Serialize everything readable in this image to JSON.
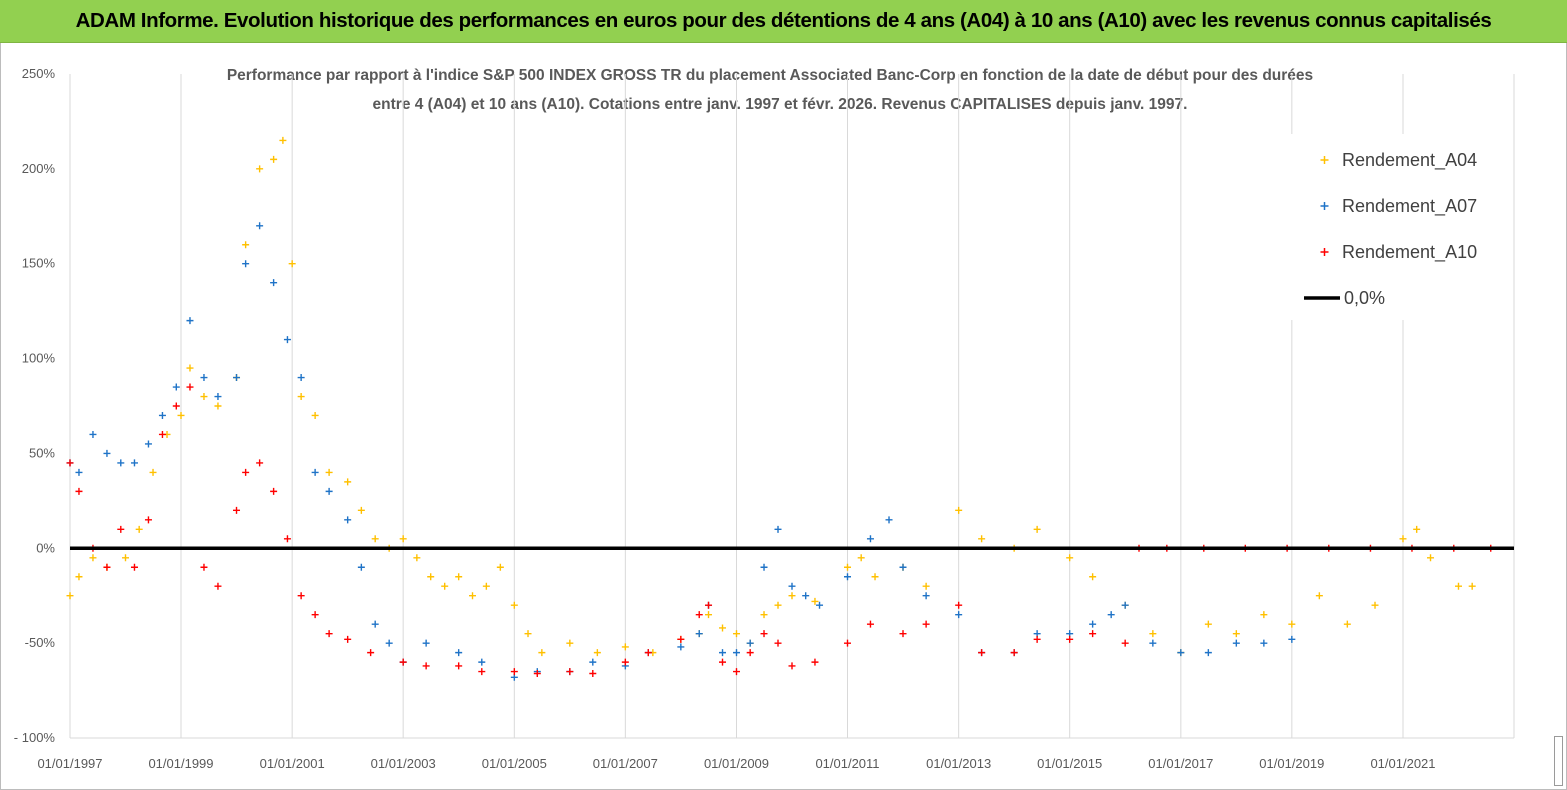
{
  "banner": {
    "title": "ADAM Informe. Evolution historique des performances en euros pour des détentions de 4 ans (A04) à 10 ans (A10) avec les revenus connus capitalisés"
  },
  "chart_data": {
    "type": "scatter",
    "subtitle_lines": [
      "Performance par rapport à l'indice S&P 500 INDEX GROSS TR  du placement Associated Banc-Corp en fonction de la date de début pour des durées",
      "entre 4 (A04) et 10 ans (A10).  Cotations entre janv. 1997 et févr. 2026. Revenus  CAPITALISES depuis janv. 1997."
    ],
    "ylim": [
      -100,
      250
    ],
    "yticks": [
      -100,
      -50,
      0,
      50,
      100,
      150,
      200,
      250
    ],
    "ytick_labels": [
      "- 100%",
      "-50%",
      "0%",
      "50%",
      "100%",
      "150%",
      "200%",
      "250%"
    ],
    "xlim": [
      "1997-01-01",
      "2023-01-01"
    ],
    "xticks": [
      "1997-01-01",
      "1999-01-01",
      "2001-01-01",
      "2003-01-01",
      "2005-01-01",
      "2007-01-01",
      "2009-01-01",
      "2011-01-01",
      "2013-01-01",
      "2015-01-01",
      "2017-01-01",
      "2019-01-01",
      "2021-01-01"
    ],
    "xtick_labels": [
      "01/01/1997",
      "01/01/1999",
      "01/01/2001",
      "01/01/2003",
      "01/01/2005",
      "01/01/2007",
      "01/01/2009",
      "01/01/2011",
      "01/01/2013",
      "01/01/2015",
      "01/01/2017",
      "01/01/2019",
      "01/01/2021"
    ],
    "grid": "vertical",
    "legend_position": "top-right",
    "series": [
      {
        "name": "Rendement_A04",
        "color": "#ffc000",
        "x": [
          "1997-01-01",
          "1997-03-01",
          "1997-06-01",
          "1997-09-01",
          "1998-01-01",
          "1998-04-01",
          "1998-07-01",
          "1998-10-01",
          "1999-01-01",
          "1999-03-01",
          "1999-06-01",
          "1999-09-01",
          "2000-01-01",
          "2000-03-01",
          "2000-06-01",
          "2000-09-01",
          "2000-11-01",
          "2001-01-01",
          "2001-03-01",
          "2001-06-01",
          "2001-09-01",
          "2002-01-01",
          "2002-04-01",
          "2002-07-01",
          "2002-10-01",
          "2003-01-01",
          "2003-04-01",
          "2003-07-01",
          "2003-10-01",
          "2004-01-01",
          "2004-04-01",
          "2004-07-01",
          "2004-10-01",
          "2005-01-01",
          "2005-04-01",
          "2005-07-01",
          "2006-01-01",
          "2006-07-01",
          "2007-01-01",
          "2007-07-01",
          "2008-01-01",
          "2008-05-01",
          "2008-07-01",
          "2008-10-01",
          "2009-01-01",
          "2009-04-01",
          "2009-07-01",
          "2009-10-01",
          "2010-01-01",
          "2010-06-01",
          "2011-01-01",
          "2011-04-01",
          "2011-07-01",
          "2012-01-01",
          "2012-06-01",
          "2013-01-01",
          "2013-06-01",
          "2014-01-01",
          "2014-06-01",
          "2015-01-01",
          "2015-06-01",
          "2016-01-01",
          "2016-07-01",
          "2017-01-01",
          "2017-07-01",
          "2018-01-01",
          "2018-07-01",
          "2019-01-01",
          "2019-07-01",
          "2020-01-01",
          "2020-07-01",
          "2021-01-01",
          "2021-04-01",
          "2021-07-01",
          "2022-01-01",
          "2022-04-01"
        ],
        "values": [
          -25,
          -15,
          -5,
          -10,
          -5,
          10,
          40,
          60,
          70,
          95,
          80,
          75,
          90,
          160,
          200,
          205,
          215,
          150,
          80,
          70,
          40,
          35,
          20,
          5,
          0,
          5,
          -5,
          -15,
          -20,
          -15,
          -25,
          -20,
          -10,
          -30,
          -45,
          -55,
          -50,
          -55,
          -52,
          -55,
          -48,
          -45,
          -35,
          -42,
          -45,
          -50,
          -35,
          -30,
          -25,
          -28,
          -10,
          -5,
          -15,
          -10,
          -20,
          20,
          5,
          0,
          10,
          -5,
          -15,
          -30,
          -45,
          -55,
          -40,
          -45,
          -35,
          -40,
          -25,
          -40,
          -30,
          5,
          10,
          -5,
          -20,
          -20
        ]
      },
      {
        "name": "Rendement_A07",
        "color": "#1f73c7",
        "x": [
          "1997-01-01",
          "1997-03-01",
          "1997-06-01",
          "1997-09-01",
          "1997-12-01",
          "1998-03-01",
          "1998-06-01",
          "1998-09-01",
          "1998-12-01",
          "1999-03-01",
          "1999-06-01",
          "1999-09-01",
          "2000-01-01",
          "2000-03-01",
          "2000-06-01",
          "2000-09-01",
          "2000-12-01",
          "2001-03-01",
          "2001-06-01",
          "2001-09-01",
          "2002-01-01",
          "2002-04-01",
          "2002-07-01",
          "2002-10-01",
          "2003-01-01",
          "2003-06-01",
          "2004-01-01",
          "2004-06-01",
          "2005-01-01",
          "2005-06-01",
          "2006-01-01",
          "2006-06-01",
          "2007-01-01",
          "2007-06-01",
          "2008-01-01",
          "2008-05-01",
          "2008-07-01",
          "2008-10-01",
          "2009-01-01",
          "2009-04-01",
          "2009-07-01",
          "2009-10-01",
          "2010-01-01",
          "2010-04-01",
          "2010-07-01",
          "2011-01-01",
          "2011-06-01",
          "2011-10-01",
          "2012-01-01",
          "2012-06-01",
          "2013-01-01",
          "2013-06-01",
          "2014-01-01",
          "2014-06-01",
          "2015-01-01",
          "2015-06-01",
          "2015-10-01",
          "2016-01-01",
          "2016-07-01",
          "2017-01-01",
          "2017-07-01",
          "2018-01-01",
          "2018-07-01",
          "2019-01-01"
        ],
        "values": [
          45,
          40,
          60,
          50,
          45,
          45,
          55,
          70,
          85,
          120,
          90,
          80,
          90,
          150,
          170,
          140,
          110,
          90,
          40,
          30,
          15,
          -10,
          -40,
          -50,
          -60,
          -50,
          -55,
          -60,
          -68,
          -65,
          -65,
          -60,
          -62,
          -55,
          -52,
          -45,
          -30,
          -55,
          -55,
          -50,
          -10,
          10,
          -20,
          -25,
          -30,
          -15,
          5,
          15,
          -10,
          -25,
          -35,
          -55,
          -55,
          -45,
          -45,
          -40,
          -35,
          -30,
          -50,
          -55,
          -55,
          -50,
          -50,
          -48
        ]
      },
      {
        "name": "Rendement_A10",
        "color": "#ff0000",
        "x": [
          "1997-01-01",
          "1997-03-01",
          "1997-06-01",
          "1997-09-01",
          "1997-12-01",
          "1998-03-01",
          "1998-06-01",
          "1998-09-01",
          "1998-12-01",
          "1999-03-01",
          "1999-06-01",
          "1999-09-01",
          "2000-01-01",
          "2000-03-01",
          "2000-06-01",
          "2000-09-01",
          "2000-12-01",
          "2001-03-01",
          "2001-06-01",
          "2001-09-01",
          "2002-01-01",
          "2002-06-01",
          "2003-01-01",
          "2003-06-01",
          "2004-01-01",
          "2004-06-01",
          "2005-01-01",
          "2005-06-01",
          "2006-01-01",
          "2006-06-01",
          "2007-01-01",
          "2007-06-01",
          "2008-01-01",
          "2008-05-01",
          "2008-07-01",
          "2008-10-01",
          "2009-01-01",
          "2009-04-01",
          "2009-07-01",
          "2009-10-01",
          "2010-01-01",
          "2010-06-01",
          "2011-01-01",
          "2011-06-01",
          "2012-01-01",
          "2012-06-01",
          "2013-01-01",
          "2013-06-01",
          "2014-01-01",
          "2014-06-01",
          "2015-01-01",
          "2015-06-01",
          "2016-01-01",
          "2016-04-01",
          "2016-10-01",
          "2017-06-01",
          "2018-03-01",
          "2018-12-01",
          "2019-09-01",
          "2020-06-01",
          "2021-03-01",
          "2021-12-01",
          "2022-08-01"
        ],
        "values": [
          45,
          30,
          0,
          -10,
          10,
          -10,
          15,
          60,
          75,
          85,
          -10,
          -20,
          20,
          40,
          45,
          30,
          5,
          -25,
          -35,
          -45,
          -48,
          -55,
          -60,
          -62,
          -62,
          -65,
          -65,
          -66,
          -65,
          -66,
          -60,
          -55,
          -48,
          -35,
          -30,
          -60,
          -65,
          -55,
          -45,
          -50,
          -62,
          -60,
          -50,
          -40,
          -45,
          -40,
          -30,
          -55,
          -55,
          -48,
          -48,
          -45,
          -50,
          0,
          0,
          0,
          0,
          0,
          0,
          0,
          0,
          0,
          0
        ]
      }
    ],
    "reference_line": {
      "name": "0,0%",
      "value": 0,
      "color": "#000000"
    }
  }
}
